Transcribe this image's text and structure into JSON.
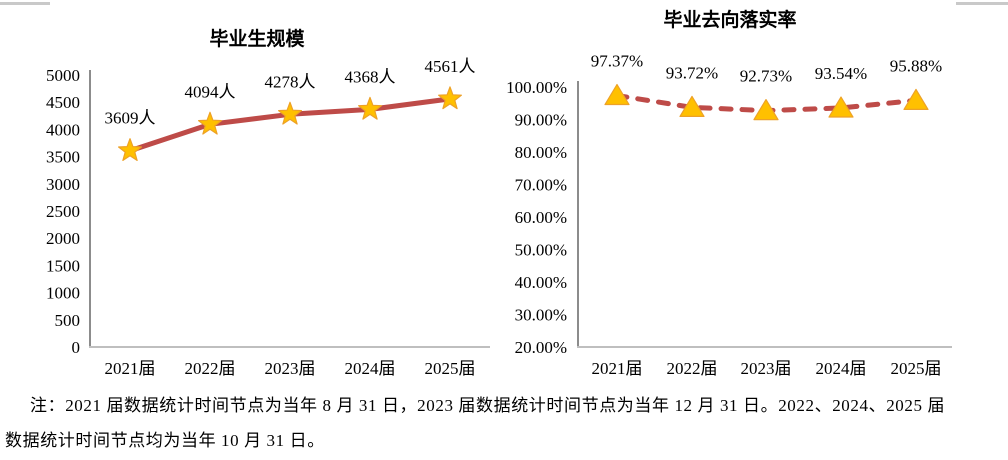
{
  "chart_data": [
    {
      "type": "line",
      "title": "毕业生规模",
      "categories": [
        "2021届",
        "2022届",
        "2023届",
        "2024届",
        "2025届"
      ],
      "values": [
        3609,
        4094,
        4278,
        4368,
        4561
      ],
      "data_labels": [
        "3609人",
        "4094人",
        "4278人",
        "4368人",
        "4561人"
      ],
      "ylim": [
        0,
        5000
      ],
      "yticks": [
        {
          "label": "5000",
          "value": 5000
        },
        {
          "label": "4500",
          "value": 4500
        },
        {
          "label": "4000",
          "value": 4000
        },
        {
          "label": "3500",
          "value": 3500
        },
        {
          "label": "3000",
          "value": 3000
        },
        {
          "label": "2500",
          "value": 2500
        },
        {
          "label": "2000",
          "value": 2000
        },
        {
          "label": "1500",
          "value": 1500
        },
        {
          "label": "1000",
          "value": 1000
        },
        {
          "label": "500",
          "value": 500
        },
        {
          "label": "0",
          "value": 0
        }
      ],
      "line_style": "solid",
      "marker": "star",
      "line_color": "#BE4B48",
      "marker_fill": "#FFC000",
      "marker_stroke": "#EDA128",
      "grid": false,
      "legend": "none"
    },
    {
      "type": "line",
      "title": "毕业去向落实率",
      "categories": [
        "2021届",
        "2022届",
        "2023届",
        "2024届",
        "2025届"
      ],
      "values": [
        97.37,
        93.72,
        92.73,
        93.54,
        95.88
      ],
      "data_labels": [
        "97.37%",
        "93.72%",
        "92.73%",
        "93.54%",
        "95.88%"
      ],
      "ylim": [
        20,
        100
      ],
      "yticks": [
        {
          "label": "100.00%",
          "value": 100
        },
        {
          "label": "90.00%",
          "value": 90
        },
        {
          "label": "80.00%",
          "value": 80
        },
        {
          "label": "70.00%",
          "value": 70
        },
        {
          "label": "60.00%",
          "value": 60
        },
        {
          "label": "50.00%",
          "value": 50
        },
        {
          "label": "40.00%",
          "value": 40
        },
        {
          "label": "30.00%",
          "value": 30
        },
        {
          "label": "20.00%",
          "value": 20
        }
      ],
      "line_style": "dashed",
      "marker": "triangle",
      "line_color": "#BE4B48",
      "marker_fill": "#FFC000",
      "marker_stroke": "#EDA128",
      "grid": false,
      "legend": "none"
    }
  ],
  "note": {
    "line1": "注：2021 届数据统计时间节点为当年 8 月 31 日，2023 届数据统计时间节点为当年 12 月 31 日。2022、2024、2025 届",
    "line2": "数据统计时间节点均为当年 10 月 31 日。"
  }
}
